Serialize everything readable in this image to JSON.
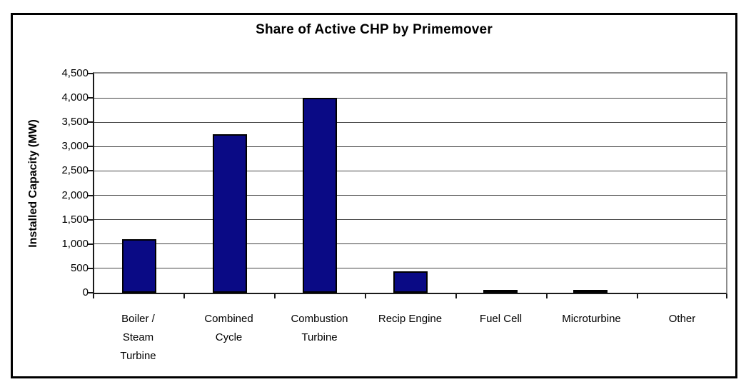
{
  "chart_data": {
    "type": "bar",
    "title": "Share of Active CHP by Primemover",
    "xlabel": "",
    "ylabel": "Installed Capacity (MW)",
    "categories": [
      "Boiler /\nSteam\nTurbine",
      "Combined\nCycle",
      "Combustion\nTurbine",
      "Recip Engine",
      "Fuel Cell",
      "Microturbine",
      "Other"
    ],
    "values": [
      1100,
      3250,
      4000,
      440,
      30,
      30,
      0
    ],
    "ylim": [
      0,
      4500
    ],
    "ytick_step": 500,
    "ytick_labels": [
      "0",
      "500",
      "1,000",
      "1,500",
      "2,000",
      "2,500",
      "3,000",
      "3,500",
      "4,000",
      "4,500"
    ],
    "grid": true,
    "legend": false,
    "bar_color": "#0a0a85",
    "bar_border_color": "#000000",
    "gridline_color": "#454545",
    "axis_color": "#1a1a1a",
    "frame_color": "#000000"
  }
}
